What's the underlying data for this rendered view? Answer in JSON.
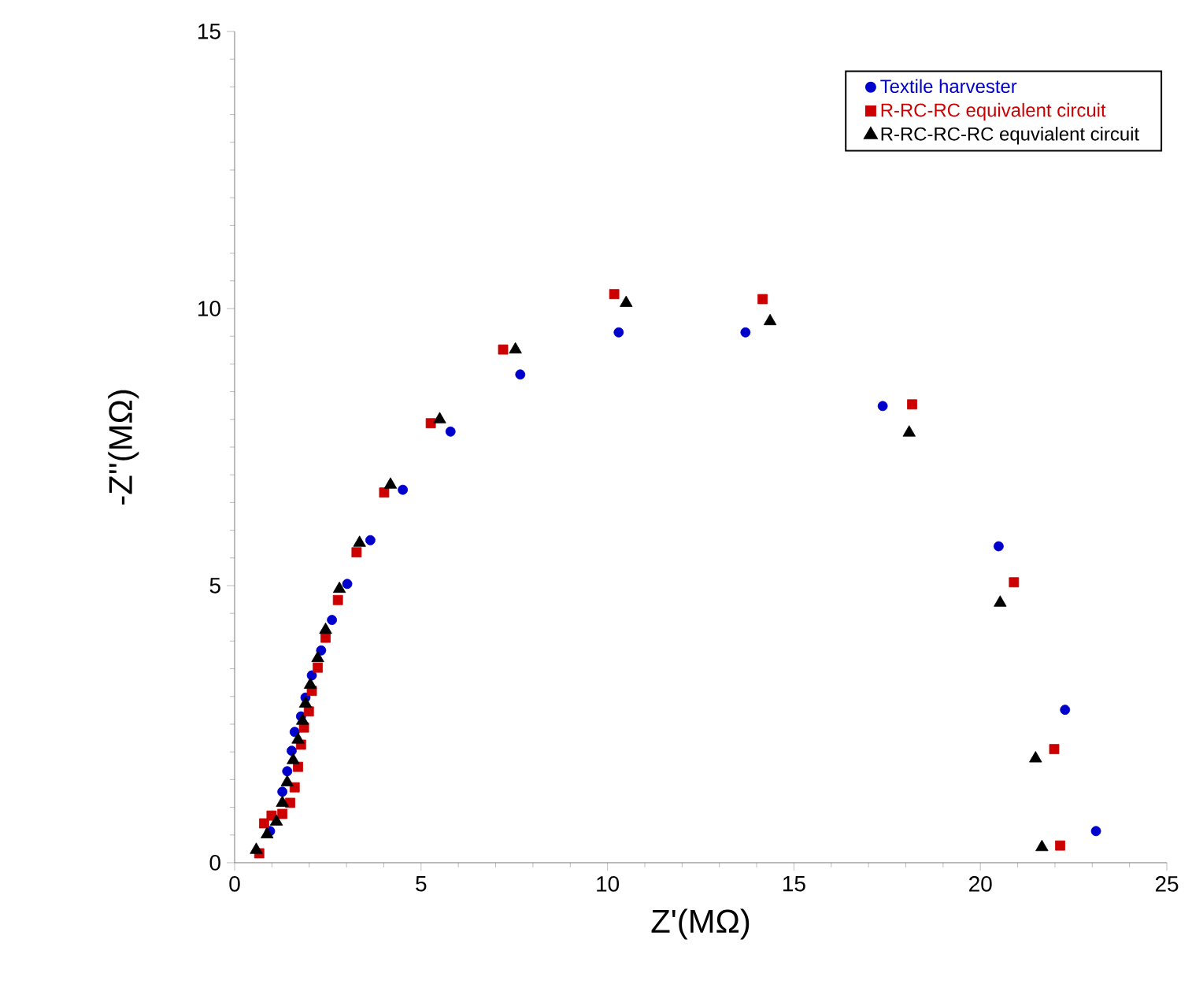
{
  "chart_data": {
    "type": "scatter",
    "xlabel": "Z'(MΩ)",
    "ylabel": "-Z''(MΩ)",
    "xlim": [
      0,
      25
    ],
    "ylim": [
      0,
      15
    ],
    "xticks": [
      0,
      5,
      10,
      15,
      20,
      25
    ],
    "yticks": [
      0,
      5,
      10,
      15
    ],
    "grid": false,
    "legend": "top right",
    "series": [
      {
        "name": "Textile harvester",
        "color": "#0000cc",
        "marker": "circle",
        "x": [
          0.95,
          1.28,
          1.41,
          1.53,
          1.61,
          1.78,
          1.9,
          2.07,
          2.32,
          2.61,
          3.02,
          3.64,
          4.51,
          5.79,
          7.66,
          10.3,
          13.7,
          17.38,
          20.49,
          22.27,
          23.1
        ],
        "values": [
          0.57,
          1.28,
          1.65,
          2.02,
          2.36,
          2.64,
          2.98,
          3.38,
          3.83,
          4.38,
          5.03,
          5.82,
          6.73,
          7.78,
          8.81,
          9.57,
          9.57,
          8.24,
          5.71,
          2.76,
          0.57
        ]
      },
      {
        "name": "R-RC-RC equivalent circuit",
        "color": "#cc0000",
        "marker": "square",
        "x": [
          0.66,
          0.79,
          0.99,
          1.28,
          1.49,
          1.61,
          1.7,
          1.78,
          1.86,
          1.99,
          2.07,
          2.23,
          2.44,
          2.77,
          3.27,
          4.01,
          5.26,
          7.2,
          10.18,
          14.16,
          18.17,
          20.9,
          21.98,
          22.14
        ],
        "values": [
          0.17,
          0.71,
          0.85,
          0.88,
          1.08,
          1.36,
          1.73,
          2.13,
          2.44,
          2.73,
          3.1,
          3.52,
          4.06,
          4.74,
          5.6,
          6.68,
          7.93,
          9.26,
          10.26,
          10.17,
          8.27,
          5.06,
          2.05,
          0.31
        ]
      },
      {
        "name": "R-RC-RC-RC equvialent circuit",
        "color": "#000000",
        "marker": "triangle",
        "x": [
          0.58,
          0.87,
          1.12,
          1.28,
          1.41,
          1.57,
          1.7,
          1.82,
          1.9,
          2.03,
          2.23,
          2.44,
          2.81,
          3.35,
          4.18,
          5.5,
          7.53,
          10.5,
          14.36,
          18.09,
          20.53,
          21.48,
          21.65
        ],
        "values": [
          0.23,
          0.51,
          0.74,
          1.08,
          1.45,
          1.85,
          2.22,
          2.56,
          2.87,
          3.21,
          3.69,
          4.2,
          4.94,
          5.77,
          6.82,
          8.0,
          9.26,
          10.1,
          9.77,
          7.76,
          4.69,
          1.88,
          0.28
        ]
      }
    ]
  }
}
